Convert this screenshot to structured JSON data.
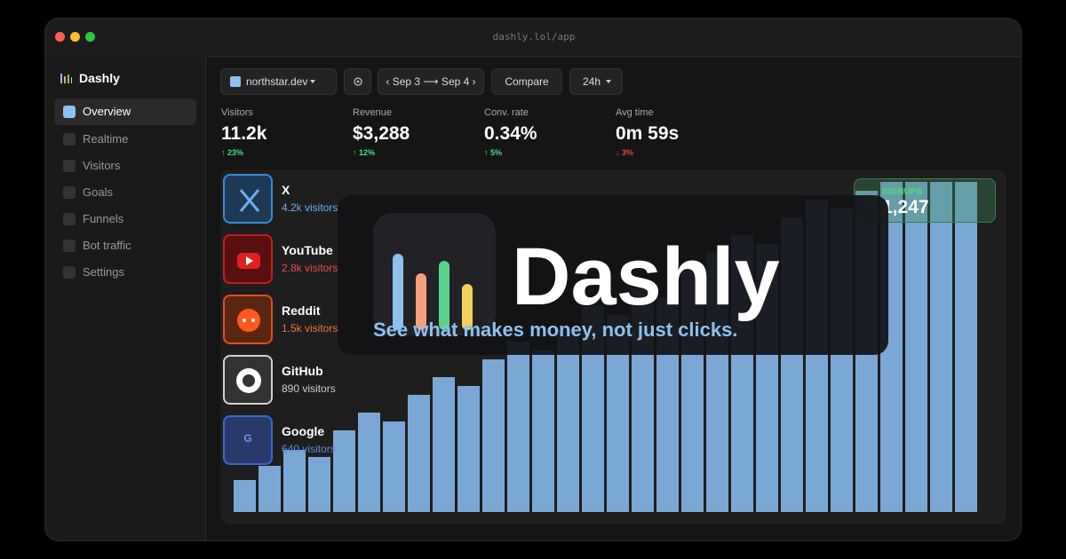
{
  "window": {
    "url": "dashly.lol/app"
  },
  "sidebar": {
    "brand": "Dashly",
    "nav": [
      "Overview",
      "Realtime",
      "Visitors",
      "Goals",
      "Funnels",
      "Bot traffic",
      "Settings"
    ]
  },
  "toolbar": {
    "site": "northstar.dev",
    "range": "‹ Sep 3 ⟶ Sep 4 ›",
    "compare": "Compare",
    "interval": "24h"
  },
  "metrics": [
    {
      "label": "Visitors",
      "value": "11.2k",
      "delta": "↑ 23%"
    },
    {
      "label": "Revenue",
      "value": "$3,288",
      "delta": "↑ 12%"
    },
    {
      "label": "Conv. rate",
      "value": "0.34%",
      "delta": "↑ 5%"
    },
    {
      "label": "Avg time",
      "value": "0m 59s",
      "delta": "↓ 3%"
    }
  ],
  "sources": [
    {
      "name": "X",
      "visitors": "4.2k visitors"
    },
    {
      "name": "YouTube",
      "visitors": "2.8k visitors"
    },
    {
      "name": "Reddit",
      "visitors": "1.5k visitors"
    },
    {
      "name": "GitHub",
      "visitors": "890 visitors"
    },
    {
      "name": "Google",
      "visitors": "640 visitors",
      "icon_label": "G"
    }
  ],
  "badge": {
    "label": "SIGNUPS",
    "value": "1,247"
  },
  "overlay": {
    "title": "Dashly",
    "tagline": "See what makes money, not just clicks."
  },
  "chart_data": {
    "type": "bar",
    "values": [
      36,
      52,
      70,
      62,
      92,
      112,
      102,
      132,
      152,
      142,
      172,
      192,
      182,
      206,
      232,
      222,
      252,
      242,
      272,
      292,
      312,
      302,
      332,
      352,
      342,
      362,
      372,
      372,
      372,
      372
    ],
    "ylim": [
      0,
      380
    ],
    "color": "#7ba7d4"
  }
}
